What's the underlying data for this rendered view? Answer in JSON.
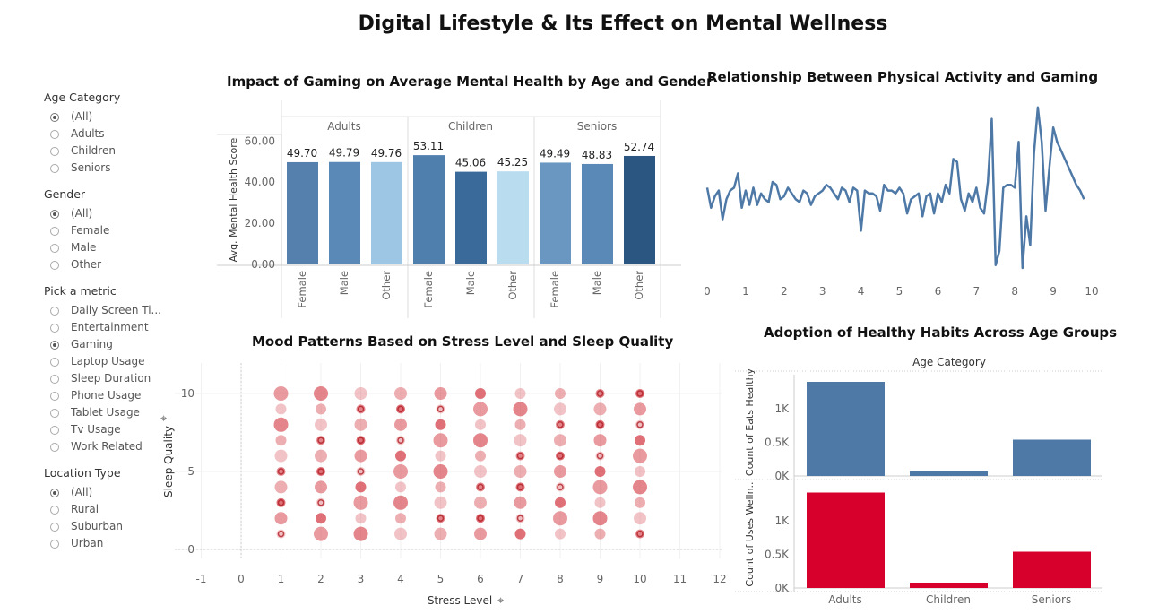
{
  "title": "Digital Lifestyle & Its Effect on Mental Wellness",
  "filters": [
    {
      "title": "Age Category",
      "options": [
        "(All)",
        "Adults",
        "Children",
        "Seniors"
      ],
      "selected": 0
    },
    {
      "title": "Gender",
      "options": [
        "(All)",
        "Female",
        "Male",
        "Other"
      ],
      "selected": 0
    },
    {
      "title": "Pick a metric",
      "options": [
        "Daily Screen Ti...",
        "Entertainment",
        "Gaming",
        "Laptop Usage",
        "Sleep Duration",
        "Phone Usage",
        "Tablet Usage",
        "Tv Usage",
        "Work Related"
      ],
      "selected": 2
    },
    {
      "title": "Location Type",
      "options": [
        "(All)",
        "Rural",
        "Suburban",
        "Urban"
      ],
      "selected": 0
    }
  ],
  "chart_data": [
    {
      "type": "bar",
      "title": "Impact of Gaming on Average Mental Health by Age and Gender",
      "ylabel": "Avg. Mental Health Score",
      "ylim": [
        0,
        65
      ],
      "yticks": [
        "60.00",
        "40.00",
        "20.00",
        "0.00"
      ],
      "groups": [
        "Adults",
        "Children",
        "Seniors"
      ],
      "categories": [
        "Female",
        "Male",
        "Other"
      ],
      "values": [
        [
          49.7,
          49.79,
          49.76
        ],
        [
          53.11,
          45.06,
          45.25
        ],
        [
          49.49,
          48.83,
          52.74
        ]
      ],
      "labels": [
        [
          "49.70",
          "49.79",
          "49.76"
        ],
        [
          "53.11",
          "45.06",
          "45.25"
        ],
        [
          "49.49",
          "48.83",
          "52.74"
        ]
      ],
      "colors": [
        [
          "#5580ad",
          "#5a89b8",
          "#9cc6e4"
        ],
        [
          "#4f7fad",
          "#3a6a9a",
          "#b9dcef"
        ],
        [
          "#6a97c2",
          "#5a89b8",
          "#2b5682"
        ]
      ]
    },
    {
      "type": "line",
      "title": "Relationship Between Physical Activity and Gaming",
      "xlim": [
        0,
        10
      ],
      "xticks": [
        "0",
        "1",
        "2",
        "3",
        "4",
        "5",
        "6",
        "7",
        "8",
        "9",
        "10"
      ],
      "ylim": [
        0,
        2.5
      ],
      "yticks": [
        "2",
        "1",
        "0"
      ],
      "color": "#4e79a7",
      "x": [
        0,
        0.1,
        0.2,
        0.3,
        0.4,
        0.5,
        0.6,
        0.7,
        0.8,
        0.9,
        1.0,
        1.1,
        1.2,
        1.3,
        1.4,
        1.5,
        1.6,
        1.7,
        1.8,
        1.9,
        2.0,
        2.1,
        2.2,
        2.3,
        2.4,
        2.5,
        2.6,
        2.7,
        2.8,
        2.9,
        3.0,
        3.1,
        3.2,
        3.3,
        3.4,
        3.5,
        3.6,
        3.7,
        3.8,
        3.9,
        4.0,
        4.1,
        4.2,
        4.3,
        4.4,
        4.5,
        4.6,
        4.7,
        4.8,
        4.9,
        5.0,
        5.1,
        5.2,
        5.3,
        5.4,
        5.5,
        5.6,
        5.7,
        5.8,
        5.9,
        6.0,
        6.1,
        6.2,
        6.3,
        6.4,
        6.5,
        6.6,
        6.7,
        6.8,
        6.9,
        7.0,
        7.1,
        7.2,
        7.3,
        7.4,
        7.5,
        7.6,
        7.7,
        7.8,
        7.9,
        8.0,
        8.1,
        8.2,
        8.3,
        8.4,
        8.5,
        8.6,
        8.7,
        8.8,
        8.9,
        9.0,
        9.1,
        9.2,
        9.3,
        9.4,
        9.5,
        9.6,
        9.7,
        9.8
      ],
      "y": [
        1.4,
        1.05,
        1.25,
        1.35,
        0.85,
        1.2,
        1.35,
        1.4,
        1.65,
        1.05,
        1.35,
        1.1,
        1.4,
        1.1,
        1.3,
        1.2,
        1.15,
        1.5,
        1.45,
        1.2,
        1.25,
        1.4,
        1.3,
        1.2,
        1.15,
        1.35,
        1.3,
        1.1,
        1.25,
        1.3,
        1.35,
        1.45,
        1.4,
        1.3,
        1.2,
        1.4,
        1.35,
        1.15,
        1.4,
        1.35,
        0.65,
        1.35,
        1.3,
        1.3,
        1.25,
        1.0,
        1.45,
        1.35,
        1.35,
        1.3,
        1.4,
        1.3,
        0.95,
        1.2,
        1.25,
        1.3,
        0.9,
        1.25,
        1.3,
        0.95,
        1.3,
        1.15,
        1.45,
        1.3,
        1.9,
        1.85,
        1.2,
        1.0,
        1.3,
        1.15,
        1.4,
        1.05,
        0.95,
        1.5,
        2.6,
        0.05,
        0.3,
        1.4,
        1.45,
        1.45,
        1.4,
        2.2,
        0.0,
        0.9,
        0.4,
        2.0,
        2.8,
        2.2,
        1.0,
        1.75,
        2.45,
        2.2,
        2.05,
        1.9,
        1.75,
        1.6,
        1.45,
        1.35,
        1.2
      ],
      "x_range": [
        0,
        9.8
      ]
    },
    {
      "type": "scatter",
      "title": "Mood Patterns Based on Stress Level and Sleep Quality",
      "xlabel": "Stress Level",
      "ylabel": "Sleep Quality",
      "xlim": [
        -1,
        12
      ],
      "ylim": [
        -0.8,
        11.3
      ],
      "xticks": [
        "-1",
        "0",
        "1",
        "2",
        "3",
        "4",
        "5",
        "6",
        "7",
        "8",
        "9",
        "10",
        "11",
        "12"
      ],
      "yticks": [
        "10",
        "5",
        "0"
      ],
      "x_levels": [
        1,
        2,
        3,
        4,
        5,
        6,
        7,
        8,
        9,
        10
      ],
      "y_levels": [
        1,
        2,
        3,
        4,
        5,
        6,
        7,
        8,
        9,
        10
      ],
      "color": "#d9535b"
    },
    {
      "type": "bar",
      "title": "Adoption of Healthy Habits Across Age Groups",
      "xlabel": "Age Category",
      "categories": [
        "Adults",
        "Children",
        "Seniors"
      ],
      "series": [
        {
          "name": "Count of Eats Healthy",
          "values": [
            1400,
            70,
            540
          ],
          "color": "#4e79a7",
          "yticks": [
            "1K",
            "0.5K",
            "0K"
          ]
        },
        {
          "name": "Count of Uses Welln..",
          "values": [
            1420,
            80,
            540
          ],
          "color": "#d7002c",
          "yticks": [
            "1K",
            "0.5K",
            "0K"
          ]
        }
      ],
      "ylim": [
        0,
        1500
      ]
    }
  ]
}
